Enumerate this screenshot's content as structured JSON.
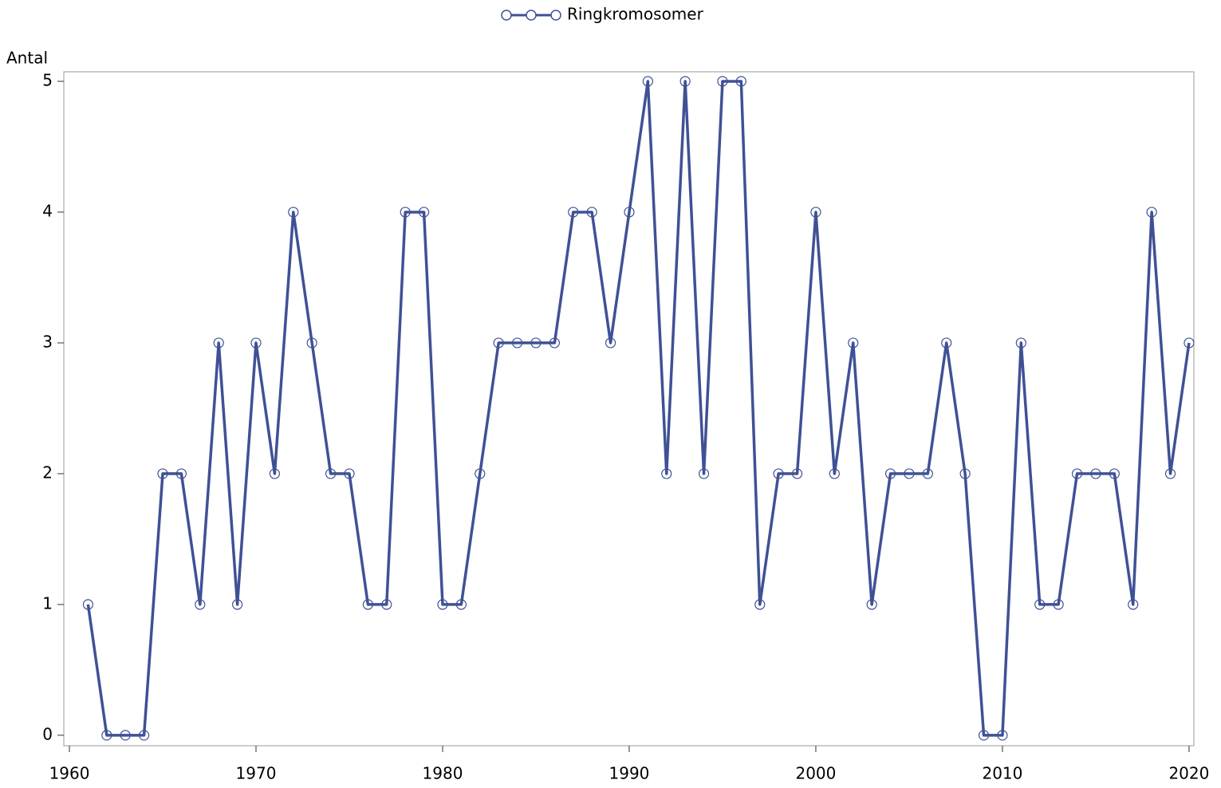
{
  "chart_data": {
    "type": "line",
    "y_label": "Antal",
    "x": [
      1961,
      1962,
      1963,
      1964,
      1965,
      1966,
      1967,
      1968,
      1969,
      1970,
      1971,
      1972,
      1973,
      1974,
      1975,
      1976,
      1977,
      1978,
      1979,
      1980,
      1981,
      1982,
      1983,
      1984,
      1985,
      1986,
      1987,
      1988,
      1989,
      1990,
      1991,
      1992,
      1993,
      1994,
      1995,
      1996,
      1997,
      1998,
      1999,
      2000,
      2001,
      2002,
      2003,
      2004,
      2005,
      2006,
      2007,
      2008,
      2009,
      2010,
      2011,
      2012,
      2013,
      2014,
      2015,
      2016,
      2017,
      2018,
      2019,
      2020
    ],
    "series": [
      {
        "name": "Ringkromosomer",
        "color": "#3f5195",
        "values": [
          1,
          0,
          0,
          0,
          2,
          2,
          1,
          3,
          1,
          3,
          2,
          4,
          3,
          2,
          2,
          1,
          1,
          4,
          4,
          1,
          1,
          2,
          3,
          3,
          3,
          3,
          4,
          4,
          3,
          4,
          5,
          2,
          5,
          2,
          5,
          5,
          1,
          2,
          2,
          4,
          2,
          3,
          1,
          2,
          2,
          2,
          3,
          2,
          0,
          0,
          3,
          1,
          1,
          2,
          2,
          2,
          1,
          4,
          2,
          3
        ]
      }
    ],
    "xlim": [
      1959.7,
      2020.26
    ],
    "xticks": [
      1960,
      1970,
      1980,
      1990,
      2000,
      2010,
      2020
    ],
    "ylim": [
      -0.08,
      5.073
    ],
    "yticks": [
      0,
      1,
      2,
      3,
      4,
      5
    ],
    "legend": "top"
  }
}
